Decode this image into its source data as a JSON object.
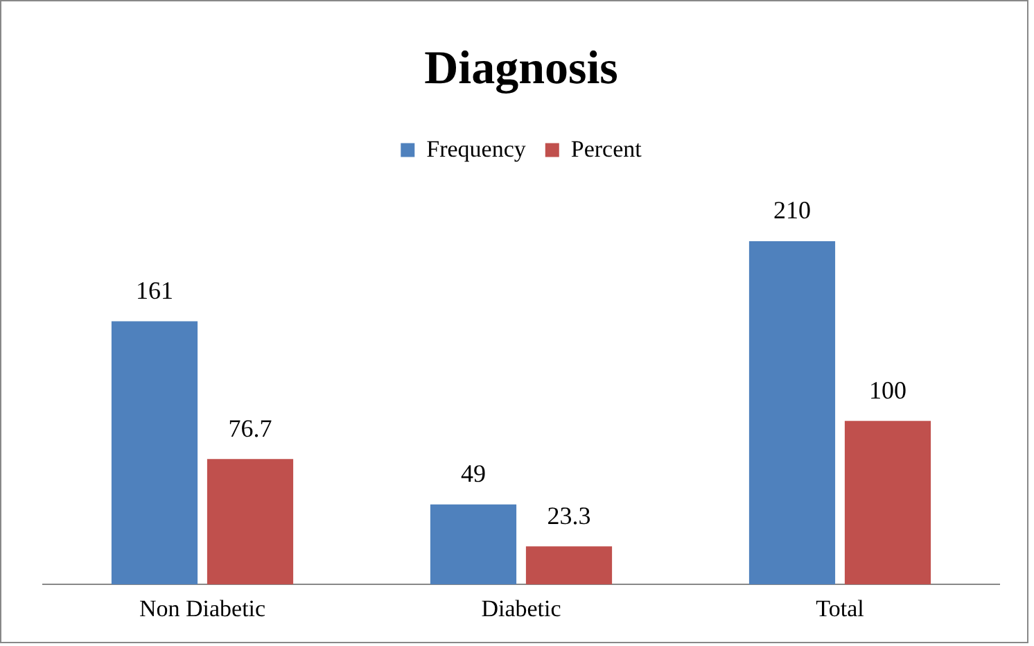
{
  "chart_data": {
    "type": "bar",
    "title": "Diagnosis",
    "categories": [
      "Non Diabetic",
      "Diabetic",
      "Total"
    ],
    "series": [
      {
        "name": "Frequency",
        "color": "#4f81bd",
        "values": [
          161,
          49,
          210
        ]
      },
      {
        "name": "Percent",
        "color": "#c0504d",
        "values": [
          76.7,
          23.3,
          100
        ]
      }
    ],
    "grid": false,
    "legend": "top",
    "tick_labels": "x",
    "data_labels": true
  }
}
